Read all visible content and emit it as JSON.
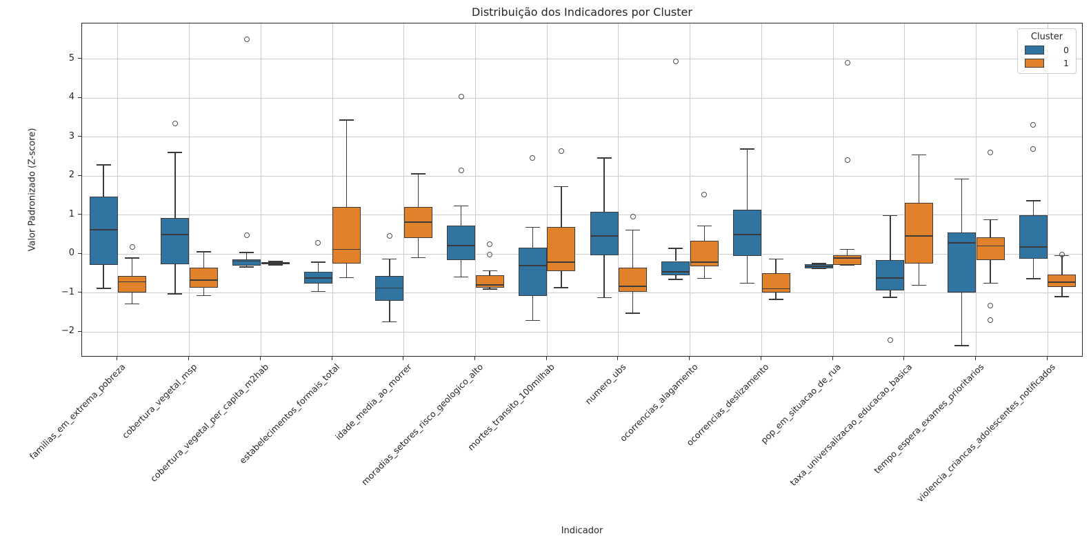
{
  "title": "Distribuição dos Indicadores por Cluster",
  "legend": {
    "title": "Cluster",
    "entries": [
      {
        "label": "0",
        "color": "#3274a1"
      },
      {
        "label": "1",
        "color": "#e1812c"
      }
    ]
  },
  "chart_data": {
    "type": "boxplot",
    "title": "Distribuição dos Indicadores por Cluster",
    "xlabel": "Indicador",
    "ylabel": "Valor Padronizado (Z-score)",
    "ylim": [
      -2.65,
      5.92
    ],
    "yticks": [
      -2,
      -1,
      0,
      1,
      2,
      3,
      4,
      5
    ],
    "grid": true,
    "legend_position": "upper right",
    "categories": [
      "familias_em_extrema_pobreza",
      "cobertura_vegetal_msp",
      "cobertura_vegetal_per_capita_m2hab",
      "estabelecimentos_formais_total",
      "idade_media_ao_morrer",
      "moradias_setores_risco_geologico_alto",
      "mortes_transito_100milhab",
      "numero_ubs",
      "ocorrencias_alagamento",
      "ocorrencias_deslizamento",
      "pop_em_situacao_de_rua",
      "taxa_universalizacao_educacao_basica",
      "tempo_espera_exames_prioritarios",
      "violencia_criancas_adolescentes_notificados"
    ],
    "series": [
      {
        "name": "0",
        "color": "#3274a1",
        "boxes": [
          {
            "whislo": -0.88,
            "q1": -0.28,
            "med": 0.63,
            "q3": 1.48,
            "whishi": 2.29,
            "outliers": []
          },
          {
            "whislo": -1.02,
            "q1": -0.26,
            "med": 0.5,
            "q3": 0.93,
            "whishi": 2.61,
            "outliers": [
              3.35
            ]
          },
          {
            "whislo": -0.33,
            "q1": -0.29,
            "med": -0.18,
            "q3": -0.13,
            "whishi": 0.04,
            "outliers": [
              0.49,
              5.51
            ]
          },
          {
            "whislo": -0.96,
            "q1": -0.75,
            "med": -0.62,
            "q3": -0.45,
            "whishi": -0.21,
            "outliers": [
              0.29
            ]
          },
          {
            "whislo": -1.74,
            "q1": -1.19,
            "med": -0.87,
            "q3": -0.56,
            "whishi": -0.13,
            "outliers": [
              0.47
            ]
          },
          {
            "whislo": -0.59,
            "q1": -0.16,
            "med": 0.22,
            "q3": 0.74,
            "whishi": 1.24,
            "outliers": [
              2.14,
              4.05
            ]
          },
          {
            "whislo": -1.7,
            "q1": -1.07,
            "med": -0.29,
            "q3": 0.16,
            "whishi": 0.69,
            "outliers": [
              2.46
            ]
          },
          {
            "whislo": -1.12,
            "q1": -0.03,
            "med": 0.47,
            "q3": 1.09,
            "whishi": 2.47,
            "outliers": []
          },
          {
            "whislo": -0.65,
            "q1": -0.55,
            "med": -0.46,
            "q3": -0.18,
            "whishi": 0.15,
            "outliers": [
              4.95
            ]
          },
          {
            "whislo": -0.75,
            "q1": -0.04,
            "med": 0.5,
            "q3": 1.14,
            "whishi": 2.7,
            "outliers": []
          },
          {
            "whislo": -0.38,
            "q1": -0.36,
            "med": -0.31,
            "q3": -0.26,
            "whishi": -0.24,
            "outliers": []
          },
          {
            "whislo": -1.11,
            "q1": -0.93,
            "med": -0.62,
            "q3": -0.15,
            "whishi": 0.99,
            "outliers": [
              -2.21
            ]
          },
          {
            "whislo": -2.35,
            "q1": -0.99,
            "med": 0.29,
            "q3": 0.56,
            "whishi": 1.93,
            "outliers": []
          },
          {
            "whislo": -0.63,
            "q1": -0.12,
            "med": 0.19,
            "q3": 1.0,
            "whishi": 1.37,
            "outliers": [
              2.7,
              3.31
            ]
          }
        ]
      },
      {
        "name": "1",
        "color": "#e1812c",
        "boxes": [
          {
            "whislo": -1.28,
            "q1": -0.99,
            "med": -0.71,
            "q3": -0.56,
            "whishi": -0.1,
            "outliers": [
              0.19
            ]
          },
          {
            "whislo": -1.06,
            "q1": -0.87,
            "med": -0.66,
            "q3": -0.35,
            "whishi": 0.06,
            "outliers": []
          },
          {
            "whislo": -0.28,
            "q1": -0.26,
            "med": -0.23,
            "q3": -0.21,
            "whishi": -0.19,
            "outliers": []
          },
          {
            "whislo": -0.61,
            "q1": -0.25,
            "med": 0.12,
            "q3": 1.21,
            "whishi": 3.44,
            "outliers": []
          },
          {
            "whislo": -0.09,
            "q1": 0.41,
            "med": 0.82,
            "q3": 1.21,
            "whishi": 2.06,
            "outliers": []
          },
          {
            "whislo": -0.9,
            "q1": -0.86,
            "med": -0.79,
            "q3": -0.55,
            "whishi": -0.43,
            "outliers": [
              0.25,
              -0.02
            ]
          },
          {
            "whislo": -0.86,
            "q1": -0.44,
            "med": -0.2,
            "q3": 0.7,
            "whishi": 1.73,
            "outliers": [
              2.64
            ]
          },
          {
            "whislo": -1.52,
            "q1": -0.96,
            "med": -0.82,
            "q3": -0.34,
            "whishi": 0.62,
            "outliers": [
              0.97
            ]
          },
          {
            "whislo": -0.62,
            "q1": -0.31,
            "med": -0.21,
            "q3": 0.34,
            "whishi": 0.72,
            "outliers": [
              1.52
            ]
          },
          {
            "whislo": -1.16,
            "q1": -0.98,
            "med": -0.89,
            "q3": -0.49,
            "whishi": -0.13,
            "outliers": []
          },
          {
            "whislo": -0.29,
            "q1": -0.28,
            "med": -0.1,
            "q3": -0.03,
            "whishi": 0.12,
            "outliers": [
              2.42,
              4.91
            ]
          },
          {
            "whislo": -0.8,
            "q1": -0.24,
            "med": 0.47,
            "q3": 1.31,
            "whishi": 2.55,
            "outliers": []
          },
          {
            "whislo": -0.75,
            "q1": -0.16,
            "med": 0.21,
            "q3": 0.43,
            "whishi": 0.88,
            "outliers": [
              2.61,
              -1.32,
              -1.7
            ]
          },
          {
            "whislo": -1.09,
            "q1": -0.84,
            "med": -0.72,
            "q3": -0.52,
            "whishi": -0.04,
            "outliers": [
              -0.02
            ]
          }
        ]
      }
    ]
  }
}
